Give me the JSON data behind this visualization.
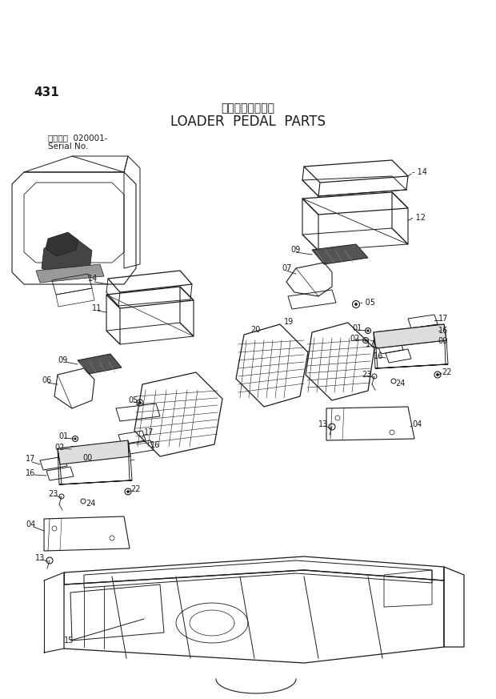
{
  "title_jp": "ローダベダル部品",
  "title_en": "LOADER  PEDAL  PARTS",
  "page_num": "431",
  "serial_label": "適用号機  020001-",
  "serial_label2": "Serial No.",
  "bg_color": "#ffffff",
  "line_color": "#1a1a1a",
  "text_color": "#1a1a1a",
  "label_fontsize": 7.0,
  "title_fontsize_jp": 10,
  "title_fontsize_en": 12,
  "page_fontsize": 11
}
